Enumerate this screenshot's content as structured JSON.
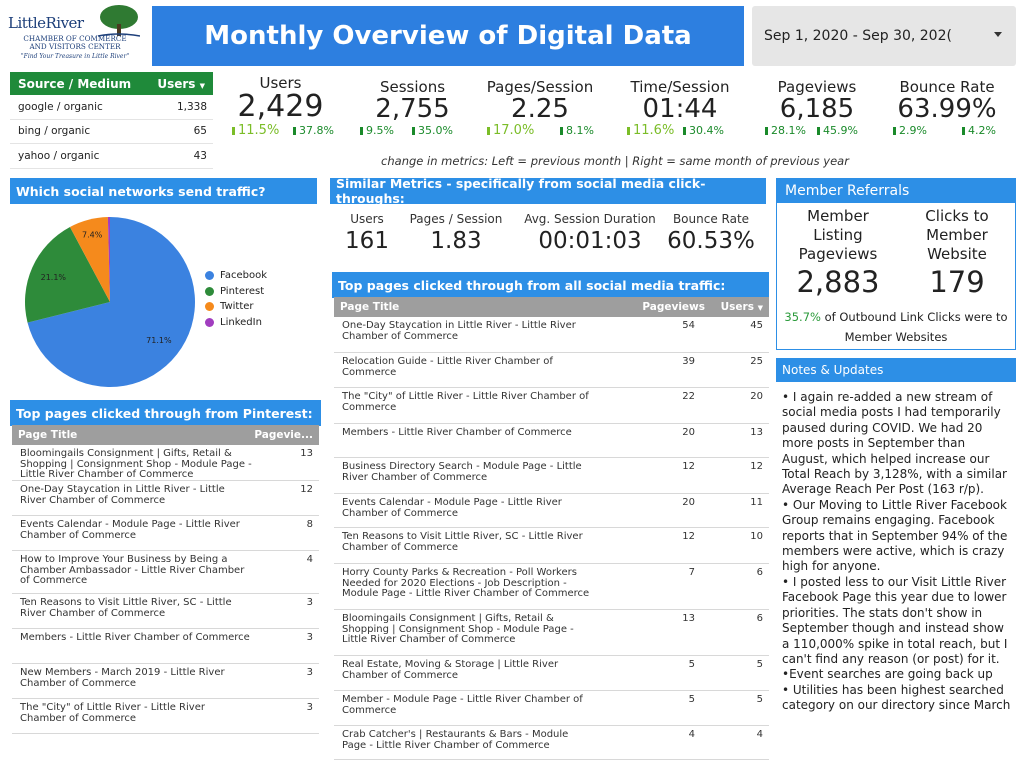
{
  "logo": {
    "name": "LittleRiver",
    "line1": "CHAMBER OF COMMERCE",
    "line2": "AND VISITORS CENTER",
    "tagline": "\"Find Your Treasure in Little River\""
  },
  "header": {
    "title": "Monthly Overview of Digital Data",
    "date_range": "Sep 1, 2020 - Sep 30, 202(",
    "icon": "chevron-down-icon"
  },
  "source_table": {
    "col_source": "Source / Medium",
    "col_users": "Users",
    "rows": [
      {
        "source": "google / organic",
        "users": "1,338"
      },
      {
        "source": "bing / organic",
        "users": "65"
      },
      {
        "source": "yahoo / organic",
        "users": "43"
      }
    ]
  },
  "metrics": [
    {
      "label": "Users",
      "value": "2,429",
      "prev_month": "11.5%",
      "prev_year": "37.8%"
    },
    {
      "label": "Sessions",
      "value": "2,755",
      "prev_month": "9.5%",
      "prev_year": "35.0%"
    },
    {
      "label": "Pages/Session",
      "value": "2.25",
      "prev_month": "17.0%",
      "prev_year": "8.1%"
    },
    {
      "label": "Time/Session",
      "value": "01:44",
      "prev_month": "11.6%",
      "prev_year": "30.4%"
    },
    {
      "label": "Pageviews",
      "value": "6,185",
      "prev_month": "28.1%",
      "prev_year": "45.9%"
    },
    {
      "label": "Bounce Rate",
      "value": "63.99%",
      "prev_month": "2.9%",
      "prev_year": "4.2%"
    }
  ],
  "metrics_note": "change in metrics: Left = previous month | Right = same month of previous year",
  "social": {
    "title": "Which social networks send traffic?",
    "colors": {
      "Facebook": "#3b82e0",
      "Pinterest": "#2e8b3a",
      "Twitter": "#f58a1c",
      "LinkedIn": "#a13dbf"
    }
  },
  "chart_data": {
    "type": "pie",
    "categories": [
      "Facebook",
      "Pinterest",
      "Twitter",
      "LinkedIn"
    ],
    "values": [
      71.1,
      21.1,
      7.4,
      0.4
    ],
    "labels": [
      "71.1%",
      "21.1%",
      "7.4%",
      ""
    ]
  },
  "pinterest": {
    "title": "Top pages clicked through from Pinterest:",
    "col_title": "Page Title",
    "col_views": "Pagevie...",
    "rows": [
      {
        "title": "Bloomingails Consignment | Gifts, Retail & Shopping | Consignment Shop - Module Page - Little River Chamber of Commerce",
        "views": "13"
      },
      {
        "title": "One-Day Staycation in Little River - Little River Chamber of Commerce",
        "views": "12"
      },
      {
        "title": "Events Calendar - Module Page - Little River Chamber of Commerce",
        "views": "8"
      },
      {
        "title": "How to Improve Your Business by Being a Chamber Ambassador - Little River Chamber of Commerce",
        "views": "4"
      },
      {
        "title": "Ten Reasons to Visit Little River, SC - Little River Chamber of Commerce",
        "views": "3"
      },
      {
        "title": "Members - Little River Chamber of Commerce",
        "views": "3"
      },
      {
        "title": "New Members - March 2019 - Little River Chamber of Commerce",
        "views": "3"
      },
      {
        "title": "The \"City\" of Little River - Little River Chamber of Commerce",
        "views": "3"
      }
    ]
  },
  "similar": {
    "title": "Similar Metrics - specifically from social media click-throughs:",
    "items": [
      {
        "label": "Users",
        "value": "161"
      },
      {
        "label": "Pages / Session",
        "value": "1.83"
      },
      {
        "label": "Avg. Session Duration",
        "value": "00:01:03"
      },
      {
        "label": "Bounce Rate",
        "value": "60.53%"
      }
    ]
  },
  "all_social": {
    "title": "Top pages clicked through from all social media traffic:",
    "col_title": "Page Title",
    "col_views": "Pageviews",
    "col_users": "Users",
    "rows": [
      {
        "title": "One-Day Staycation in Little River - Little River Chamber of Commerce",
        "views": "54",
        "users": "45"
      },
      {
        "title": "Relocation Guide - Little River Chamber of Commerce",
        "views": "39",
        "users": "25"
      },
      {
        "title": "The \"City\" of Little River - Little River Chamber of Commerce",
        "views": "22",
        "users": "20"
      },
      {
        "title": "Members - Little River Chamber of Commerce",
        "views": "20",
        "users": "13"
      },
      {
        "title": "Business Directory Search - Module Page - Little River Chamber of Commerce",
        "views": "12",
        "users": "12"
      },
      {
        "title": "Events Calendar - Module Page - Little River Chamber of Commerce",
        "views": "20",
        "users": "11"
      },
      {
        "title": "Ten Reasons to Visit Little River, SC - Little River Chamber of Commerce",
        "views": "12",
        "users": "10"
      },
      {
        "title": "Horry County Parks & Recreation - Poll Workers Needed for 2020 Elections - Job Description - Module Page - Little River Chamber of Commerce",
        "views": "7",
        "users": "6"
      },
      {
        "title": "Bloomingails Consignment | Gifts, Retail & Shopping | Consignment Shop - Module Page - Little River Chamber of Commerce",
        "views": "13",
        "users": "6"
      },
      {
        "title": "Real Estate, Moving & Storage | Little River Chamber of Commerce",
        "views": "5",
        "users": "5"
      },
      {
        "title": "Member - Module Page - Little River Chamber of Commerce",
        "views": "5",
        "users": "5"
      },
      {
        "title": "Crab Catcher's | Restaurants & Bars - Module Page - Little River Chamber of Commerce",
        "views": "4",
        "users": "4"
      }
    ]
  },
  "member_referrals": {
    "title": "Member Referrals",
    "left_label": "Member Listing Pageviews",
    "left_value": "2,883",
    "right_label": "Clicks to Member Website",
    "right_value": "179",
    "footer_pct": "35.7%",
    "footer_text": " of Outbound Link Clicks were to Member Websites"
  },
  "notes": {
    "title": "Notes & Updates",
    "items": [
      "• I again re-added a new stream of social media posts I had temporarily paused during COVID. We had 20 more posts in September than August, which helped increase our Total Reach by 3,128%, with a similar Average Reach Per Post (163 r/p).",
      "• Our Moving to Little River Facebook Group remains engaging. Facebook reports that in September 94% of the members were active, which is crazy high for anyone.",
      "• I posted less to our Visit Little River Facebook Page this year due to lower priorities. The stats don't show in September though and instead show a 110,000% spike in total reach, but I can't find any reason (or post) for it.",
      "•Event searches are going back up",
      "• Utilities has been highest searched category on our directory since March"
    ]
  }
}
